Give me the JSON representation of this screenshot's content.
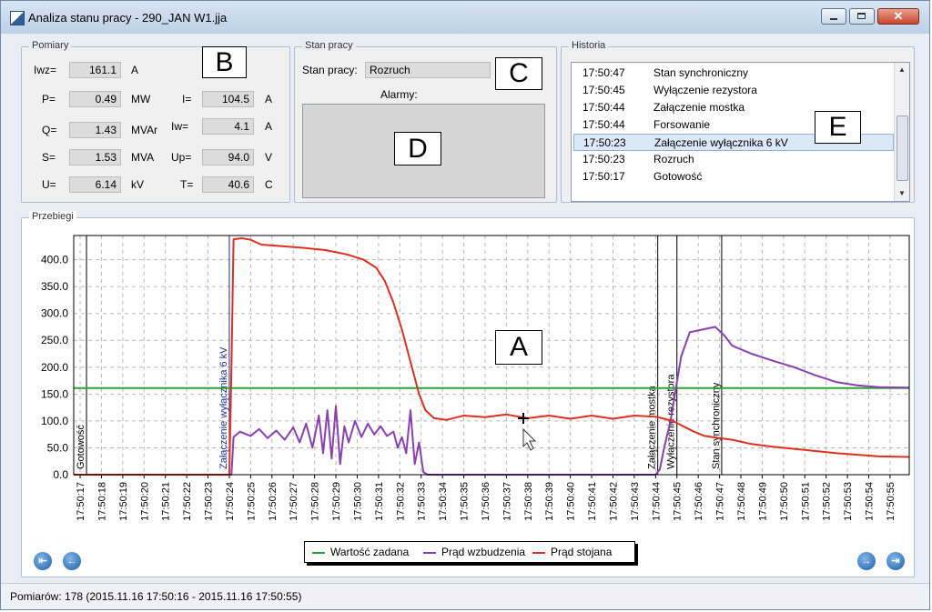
{
  "window": {
    "title": "Analiza stanu pracy - 290_JAN W1.jja"
  },
  "pomiary": {
    "title": "Pomiary",
    "left": [
      {
        "label": "Iwz=",
        "value": "161.1",
        "unit": "A"
      },
      {
        "label": "P=",
        "value": "0.49",
        "unit": "MW"
      },
      {
        "label": "Q=",
        "value": "1.43",
        "unit": "MVAr"
      },
      {
        "label": "S=",
        "value": "1.53",
        "unit": "MVA"
      },
      {
        "label": "U=",
        "value": "6.14",
        "unit": "kV"
      }
    ],
    "right": [
      {
        "label": "I=",
        "value": "104.5",
        "unit": "A"
      },
      {
        "label": "Iw=",
        "value": "4.1",
        "unit": "A"
      },
      {
        "label": "Up=",
        "value": "94.0",
        "unit": "V"
      },
      {
        "label": "T=",
        "value": "40.6",
        "unit": "C"
      }
    ]
  },
  "stan": {
    "title": "Stan pracy",
    "label": "Stan pracy:",
    "value": "Rozruch",
    "alarms_label": "Alarmy:"
  },
  "historia": {
    "title": "Historia",
    "items": [
      {
        "time": "17:50:47",
        "text": "Stan synchroniczny"
      },
      {
        "time": "17:50:45",
        "text": "Wyłączenie rezystora"
      },
      {
        "time": "17:50:44",
        "text": "Załączenie mostka"
      },
      {
        "time": "17:50:44",
        "text": "Forsowanie"
      },
      {
        "time": "17:50:23",
        "text": "Załączenie wyłącznika 6 kV"
      },
      {
        "time": "17:50:23",
        "text": "Rozruch"
      },
      {
        "time": "17:50:17",
        "text": "Gotowość"
      }
    ],
    "selected_index": 4
  },
  "annotations": {
    "a": "A",
    "b": "B",
    "c": "C",
    "d": "D",
    "e": "E"
  },
  "przebiegi": {
    "title": "Przebiegi"
  },
  "chart_data": {
    "type": "line",
    "title": "",
    "xlabel": "",
    "ylabel": "",
    "y_ticks": [
      "0.0",
      "50.0",
      "100.0",
      "150.0",
      "200.0",
      "250.0",
      "300.0",
      "350.0",
      "400.0"
    ],
    "x_ticks": [
      "17:50:17",
      "17:50:18",
      "17:50:19",
      "17:50:20",
      "17:50:21",
      "17:50:22",
      "17:50:23",
      "17:50:24",
      "17:50:25",
      "17:50:26",
      "17:50:27",
      "17:50:28",
      "17:50:29",
      "17:50:30",
      "17:50:31",
      "17:50:32",
      "17:50:33",
      "17:50:34",
      "17:50:35",
      "17:50:36",
      "17:50:37",
      "17:50:38",
      "17:50:39",
      "17:50:40",
      "17:50:41",
      "17:50:42",
      "17:50:43",
      "17:50:44",
      "17:50:45",
      "17:50:46",
      "17:50:47",
      "17:50:48",
      "17:50:49",
      "17:50:50",
      "17:50:51",
      "17:50:52",
      "17:50:53",
      "17:50:54",
      "17:50:55"
    ],
    "xlim": [
      16.7,
      55.9
    ],
    "ylim": [
      0,
      445
    ],
    "grid": true,
    "legend": "bottom-center",
    "events": [
      {
        "t": 17.3,
        "label": "Gotowość",
        "color": "#000000"
      },
      {
        "t": 24.0,
        "label": "Załączenie wyłącznika 6 kV",
        "color": "#1e2fa0"
      },
      {
        "t": 44.1,
        "label": "Załączenie mostka",
        "color": "#000000"
      },
      {
        "t": 45.0,
        "label": "Wyłączenie rezystora",
        "color": "#000000"
      },
      {
        "t": 47.1,
        "label": "Stan synchroniczny",
        "color": "#000000"
      }
    ],
    "series": [
      {
        "name": "Wartość zadana",
        "color": "#2fa52f",
        "points": [
          [
            16.7,
            161
          ],
          [
            55.9,
            161
          ]
        ]
      },
      {
        "name": "Prąd wzbudzenia",
        "color": "#8a3fb5",
        "points": [
          [
            16.7,
            0
          ],
          [
            24.1,
            0
          ],
          [
            24.2,
            70
          ],
          [
            24.5,
            80
          ],
          [
            25,
            72
          ],
          [
            25.4,
            85
          ],
          [
            25.8,
            68
          ],
          [
            26.2,
            82
          ],
          [
            26.6,
            65
          ],
          [
            27,
            88
          ],
          [
            27.3,
            60
          ],
          [
            27.6,
            95
          ],
          [
            27.9,
            50
          ],
          [
            28.2,
            110
          ],
          [
            28.4,
            40
          ],
          [
            28.6,
            120
          ],
          [
            28.8,
            30
          ],
          [
            29.0,
            128
          ],
          [
            29.2,
            20
          ],
          [
            29.4,
            90
          ],
          [
            29.6,
            60
          ],
          [
            29.9,
            100
          ],
          [
            30.2,
            70
          ],
          [
            30.5,
            95
          ],
          [
            30.8,
            75
          ],
          [
            31.1,
            90
          ],
          [
            31.4,
            72
          ],
          [
            31.7,
            80
          ],
          [
            31.9,
            50
          ],
          [
            32.1,
            70
          ],
          [
            32.3,
            40
          ],
          [
            32.5,
            120
          ],
          [
            32.7,
            20
          ],
          [
            32.9,
            60
          ],
          [
            33.1,
            5
          ],
          [
            33.3,
            0
          ],
          [
            44.0,
            0
          ],
          [
            44.2,
            10
          ],
          [
            44.4,
            50
          ],
          [
            44.7,
            100
          ],
          [
            45.2,
            220
          ],
          [
            45.6,
            265
          ],
          [
            46.2,
            270
          ],
          [
            46.8,
            275
          ],
          [
            47.2,
            260
          ],
          [
            47.6,
            240
          ],
          [
            48.5,
            225
          ],
          [
            49.5,
            212
          ],
          [
            50.5,
            200
          ],
          [
            51.5,
            185
          ],
          [
            52.5,
            172
          ],
          [
            53.5,
            166
          ],
          [
            54.5,
            163
          ],
          [
            55.9,
            162
          ]
        ]
      },
      {
        "name": "Prąd stojana",
        "color": "#e0301e",
        "points": [
          [
            16.7,
            0
          ],
          [
            24.0,
            0
          ],
          [
            24.1,
            200
          ],
          [
            24.2,
            438
          ],
          [
            24.6,
            440
          ],
          [
            25.0,
            437
          ],
          [
            25.5,
            428
          ],
          [
            26.5,
            425
          ],
          [
            27.5,
            422
          ],
          [
            28.5,
            418
          ],
          [
            29.5,
            410
          ],
          [
            30.3,
            400
          ],
          [
            30.9,
            385
          ],
          [
            31.3,
            360
          ],
          [
            31.7,
            320
          ],
          [
            32.1,
            270
          ],
          [
            32.5,
            210
          ],
          [
            32.9,
            150
          ],
          [
            33.2,
            120
          ],
          [
            33.6,
            105
          ],
          [
            34.2,
            102
          ],
          [
            35,
            110
          ],
          [
            36,
            107
          ],
          [
            37,
            112
          ],
          [
            38,
            105
          ],
          [
            39,
            110
          ],
          [
            40,
            104
          ],
          [
            41,
            110
          ],
          [
            42,
            104
          ],
          [
            43,
            110
          ],
          [
            44,
            108
          ],
          [
            44.8,
            100
          ],
          [
            45.3,
            90
          ],
          [
            45.8,
            80
          ],
          [
            46.3,
            72
          ],
          [
            47.0,
            68
          ],
          [
            47.6,
            65
          ],
          [
            48.5,
            57
          ],
          [
            49.5,
            52
          ],
          [
            50.5,
            48
          ],
          [
            51.5,
            44
          ],
          [
            52.5,
            40
          ],
          [
            53.5,
            37
          ],
          [
            54.5,
            34
          ],
          [
            55.9,
            33
          ]
        ]
      }
    ]
  },
  "navigation": {
    "first_icon": "skip-first-icon",
    "prev_icon": "prev-icon",
    "next_icon": "next-icon",
    "last_icon": "skip-last-icon"
  },
  "status": {
    "text": "Pomiarów: 178 (2015.11.16 17:50:16 - 2015.11.16 17:50:55)"
  }
}
